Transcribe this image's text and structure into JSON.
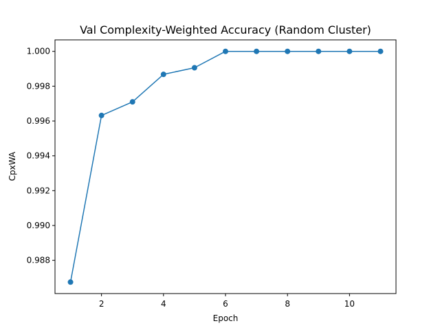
{
  "chart_data": {
    "type": "line",
    "title": "Val Complexity-Weighted Accuracy (Random Cluster)",
    "xlabel": "Epoch",
    "ylabel": "CpxWA",
    "x": [
      1,
      2,
      3,
      4,
      5,
      6,
      7,
      8,
      9,
      10,
      11
    ],
    "series": [
      {
        "values": [
          0.98675,
          0.99632,
          0.9971,
          0.99868,
          0.99906,
          1.0,
          1.0,
          1.0,
          1.0,
          1.0,
          1.0
        ],
        "color": "#1f77b4",
        "marker": "circle"
      }
    ],
    "xlim": [
      0.5,
      11.5
    ],
    "ylim": [
      0.98609,
      1.00066
    ],
    "xticks": [
      2,
      4,
      6,
      8,
      10
    ],
    "xtick_labels": [
      "2",
      "4",
      "6",
      "8",
      "10"
    ],
    "yticks": [
      0.988,
      0.99,
      0.992,
      0.994,
      0.996,
      0.998,
      1.0
    ],
    "ytick_labels": [
      "0.988",
      "0.990",
      "0.992",
      "0.994",
      "0.996",
      "0.998",
      "1.000"
    ],
    "grid": false,
    "legend": "none"
  }
}
